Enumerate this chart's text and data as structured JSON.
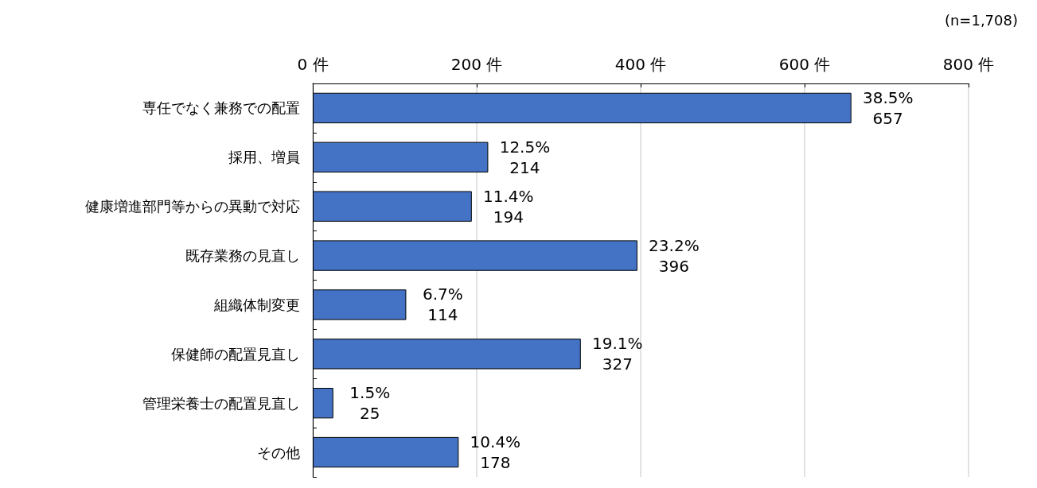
{
  "chart_data": {
    "type": "bar",
    "orientation": "horizontal",
    "categories": [
      "専任でなく兼務での配置",
      "採用、増員",
      "健康増進部門等からの異動で対応",
      "既存業務の見直し",
      "組織体制変更",
      "保健師の配置見直し",
      "管理栄養士の配置見直し",
      "その他"
    ],
    "values": [
      657,
      214,
      194,
      396,
      114,
      327,
      25,
      178
    ],
    "value_labels": [
      "38.5%\n657",
      "12.5%\n214",
      "11.4%\n194",
      "23.2%\n396",
      "6.7%\n114",
      "19.1%\n327",
      "1.5%\n25",
      "10.4%\n178"
    ],
    "color": "#4472c4",
    "xlim": [
      0,
      800
    ],
    "xticks": [
      {
        "value": 0,
        "label": "0 件"
      },
      {
        "value": 200,
        "label": "200 件"
      },
      {
        "value": 400,
        "label": "400 件"
      },
      {
        "value": 600,
        "label": "600 件"
      },
      {
        "value": 800,
        "label": "800 件"
      }
    ],
    "grid": "x",
    "annotations": [
      "(n=1,708)"
    ]
  }
}
